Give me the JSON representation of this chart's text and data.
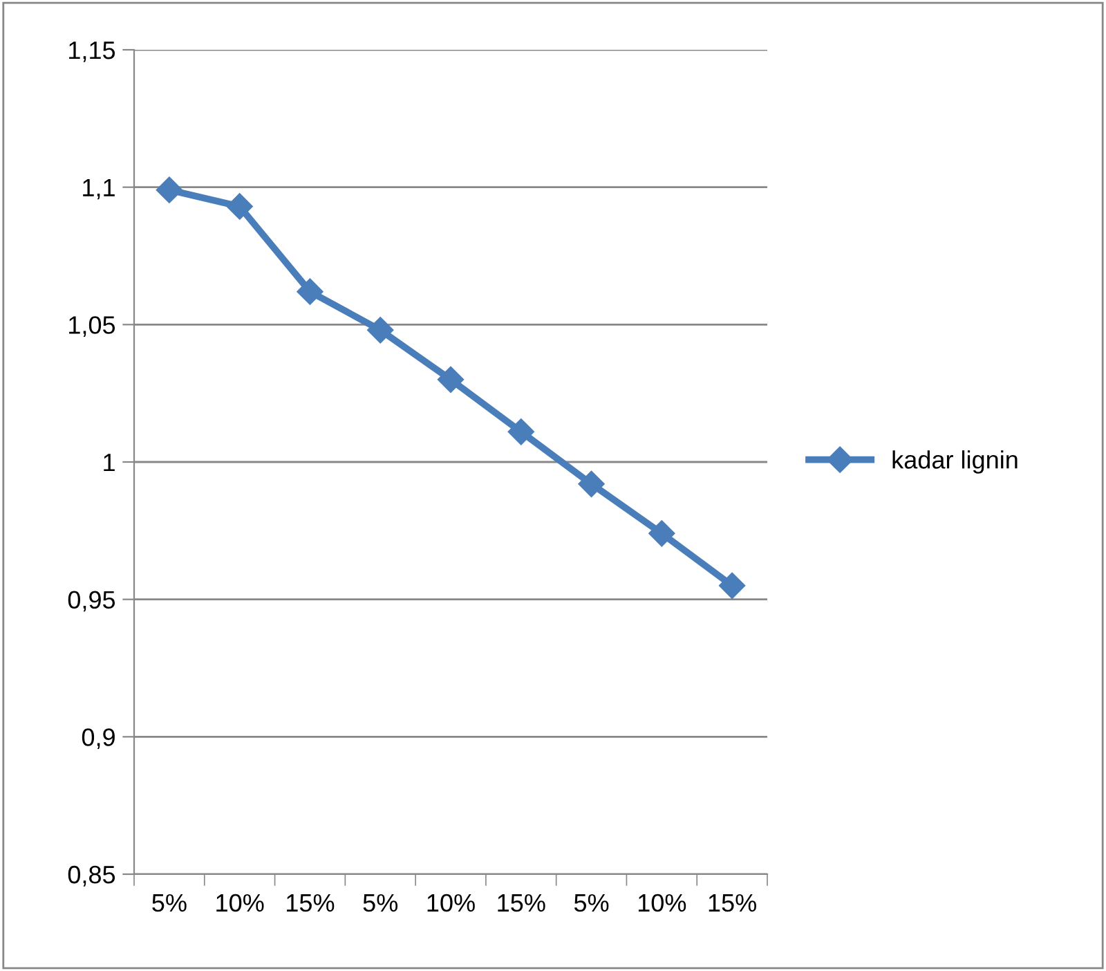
{
  "chart_data": {
    "type": "line",
    "categories": [
      "5%",
      "10%",
      "15%",
      "5%",
      "10%",
      "15%",
      "5%",
      "10%",
      "15%"
    ],
    "series": [
      {
        "name": "kadar lignin",
        "color": "#4a7ebb",
        "values": [
          1.099,
          1.093,
          1.062,
          1.048,
          1.03,
          1.011,
          0.992,
          0.974,
          0.955
        ]
      }
    ],
    "ylim": [
      0.85,
      1.15
    ],
    "yticks": [
      {
        "value": 0.85,
        "label": "0,85"
      },
      {
        "value": 0.9,
        "label": "0,9"
      },
      {
        "value": 0.95,
        "label": "0,95"
      },
      {
        "value": 1,
        "label": "1"
      },
      {
        "value": 1.05,
        "label": "1,05"
      },
      {
        "value": 1.1,
        "label": "1,1"
      },
      {
        "value": 1.15,
        "label": "1,15"
      }
    ],
    "grid": "y",
    "legend": "right",
    "marker": "diamond",
    "line_style": "solid"
  }
}
